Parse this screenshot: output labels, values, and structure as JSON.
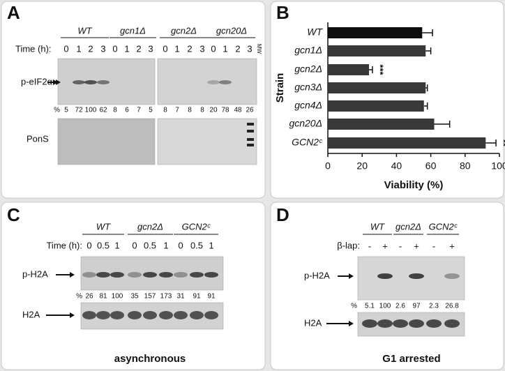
{
  "panel_a": {
    "label": "A",
    "strains": [
      "WT",
      "gcn1Δ",
      "gcn2Δ",
      "gcn20Δ"
    ],
    "time_label": "Time (h):",
    "time_points": [
      "0",
      "1",
      "2",
      "3"
    ],
    "band_label": "p-eIF2α",
    "percent_label": "%",
    "percents": [
      5,
      72,
      100,
      62,
      8,
      6,
      7,
      5,
      8,
      7,
      8,
      8,
      20,
      78,
      48,
      26
    ],
    "stain_label": "PonS",
    "marker_label": "MW"
  },
  "chart_data": {
    "type": "barh",
    "label": "B",
    "categories": [
      "WT",
      "gcn1Δ",
      "gcn2Δ",
      "gcn3Δ",
      "gcn4Δ",
      "gcn20Δ",
      "GCN2ᶜ"
    ],
    "values": [
      55,
      57,
      24,
      57,
      56,
      62,
      92
    ],
    "errors": [
      6,
      3,
      2,
      1,
      2,
      9,
      6
    ],
    "colors": [
      "#0d0d0d",
      "#383838",
      "#383838",
      "#383838",
      "#383838",
      "#383838",
      "#383838"
    ],
    "significance": [
      null,
      null,
      "***",
      null,
      null,
      null,
      "**"
    ],
    "xlim": [
      0,
      100
    ],
    "xticks": [
      0,
      20,
      40,
      60,
      80,
      100
    ],
    "xlabel": "Viability (%)",
    "ylabel": "Strain",
    "grid": false
  },
  "panel_c": {
    "label": "C",
    "strains": [
      "WT",
      "gcn2Δ",
      "GCN2ᶜ"
    ],
    "time_label": "Time (h):",
    "time_points": [
      "0",
      "0.5",
      "1"
    ],
    "band_label": "p-H2A",
    "percent_label": "%",
    "percents": [
      26,
      81,
      100,
      35,
      157,
      173,
      31,
      91,
      91
    ],
    "loading_label": "H2A",
    "caption": "asynchronous"
  },
  "panel_d": {
    "label": "D",
    "strains": [
      "WT",
      "gcn2Δ",
      "GCN2ᶜ"
    ],
    "treatment_label": "β-lap:",
    "treatment_signs": [
      "-",
      "+"
    ],
    "band_label": "p-H2A",
    "percent_label": "%",
    "percents": [
      5.1,
      100,
      2.6,
      97,
      2.3,
      26.8
    ],
    "loading_label": "H2A",
    "caption": "G1 arrested"
  }
}
